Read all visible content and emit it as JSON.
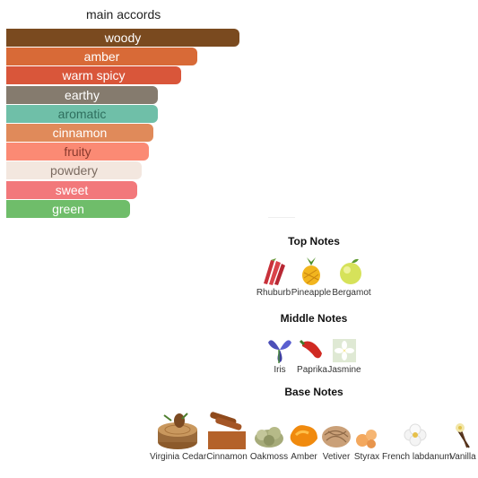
{
  "accords": {
    "title": "main accords",
    "items": [
      {
        "label": "woody",
        "value": 100,
        "color": "#7a4a1f",
        "text_color": "#ffffff"
      },
      {
        "label": "amber",
        "value": 82,
        "color": "#d86a37",
        "text_color": "#ffffff"
      },
      {
        "label": "warm spicy",
        "value": 75,
        "color": "#d9563a",
        "text_color": "#ffffff"
      },
      {
        "label": "earthy",
        "value": 65,
        "color": "#857b6e",
        "text_color": "#ffffff"
      },
      {
        "label": "aromatic",
        "value": 65,
        "color": "#6fbfa8",
        "text_color": "#2f6f5e"
      },
      {
        "label": "cinnamon",
        "value": 63,
        "color": "#e08a5a",
        "text_color": "#ffffff"
      },
      {
        "label": "fruity",
        "value": 61,
        "color": "#fb8a74",
        "text_color": "#8a3a2e"
      },
      {
        "label": "powdery",
        "value": 58,
        "color": "#f3e7df",
        "text_color": "#7a6a60"
      },
      {
        "label": "sweet",
        "value": 56,
        "color": "#f2787b",
        "text_color": "#ffffff"
      },
      {
        "label": "green",
        "value": 53,
        "color": "#6fbd6a",
        "text_color": "#ffffff"
      }
    ]
  },
  "top_notes": {
    "title": "Top Notes",
    "items": [
      {
        "label": "Rhuburb",
        "icon": "rhubarb-icon"
      },
      {
        "label": "Pineapple",
        "icon": "pineapple-icon"
      },
      {
        "label": "Bergamot",
        "icon": "bergamot-icon"
      }
    ]
  },
  "middle_notes": {
    "title": "Middle Notes",
    "items": [
      {
        "label": "Iris",
        "icon": "iris-icon"
      },
      {
        "label": "Paprika",
        "icon": "paprika-icon"
      },
      {
        "label": "Jasmine",
        "icon": "jasmine-icon"
      }
    ]
  },
  "base_notes": {
    "title": "Base Notes",
    "items": [
      {
        "label": "Virginia Cedar",
        "icon": "cedar-icon"
      },
      {
        "label": "Cinnamon",
        "icon": "cinnamon-icon"
      },
      {
        "label": "Oakmoss",
        "icon": "oakmoss-icon"
      },
      {
        "label": "Amber",
        "icon": "amber-icon"
      },
      {
        "label": "Vetiver",
        "icon": "vetiver-icon"
      },
      {
        "label": "Styrax",
        "icon": "styrax-icon"
      },
      {
        "label": "French labdanum",
        "icon": "labdanum-icon"
      },
      {
        "label": "Vanilla",
        "icon": "vanilla-icon"
      }
    ]
  }
}
